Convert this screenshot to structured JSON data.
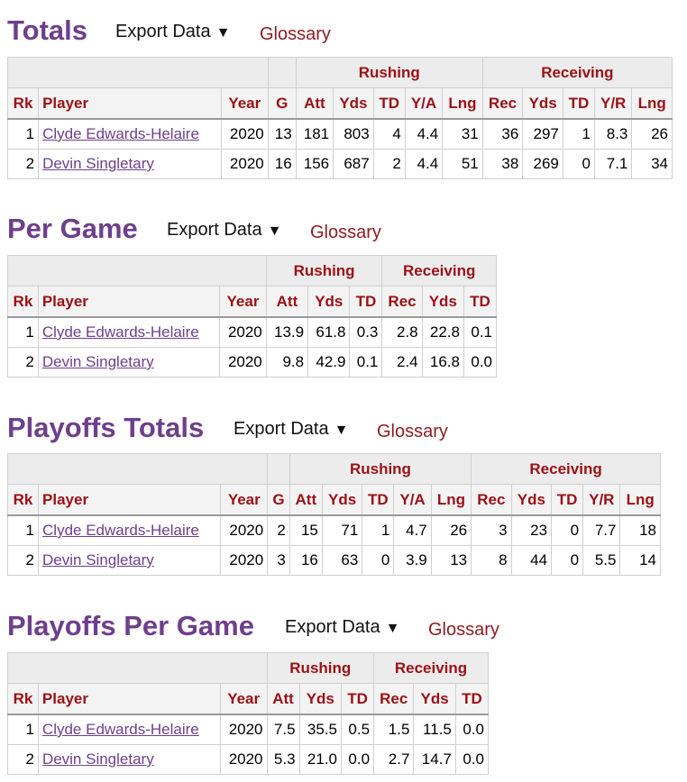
{
  "export_label": "Export Data",
  "glossary_label": "Glossary",
  "sections": [
    {
      "title": "Totals",
      "groups": [
        "Rushing",
        "Receiving"
      ],
      "columns": [
        "Rk",
        "Player",
        "Year",
        "G",
        "Att",
        "Yds",
        "TD",
        "Y/A",
        "Lng",
        "Rec",
        "Yds",
        "TD",
        "Y/R",
        "Lng"
      ],
      "rows": [
        [
          "1",
          "Clyde Edwards-Helaire",
          "2020",
          "13",
          "181",
          "803",
          "4",
          "4.4",
          "31",
          "36",
          "297",
          "1",
          "8.3",
          "26"
        ],
        [
          "2",
          "Devin Singletary",
          "2020",
          "16",
          "156",
          "687",
          "2",
          "4.4",
          "51",
          "38",
          "269",
          "0",
          "7.1",
          "34"
        ]
      ]
    },
    {
      "title": "Per Game",
      "groups": [
        "Rushing",
        "Receiving"
      ],
      "columns": [
        "Rk",
        "Player",
        "Year",
        "Att",
        "Yds",
        "TD",
        "Rec",
        "Yds",
        "TD"
      ],
      "rows": [
        [
          "1",
          "Clyde Edwards-Helaire",
          "2020",
          "13.9",
          "61.8",
          "0.3",
          "2.8",
          "22.8",
          "0.1"
        ],
        [
          "2",
          "Devin Singletary",
          "2020",
          "9.8",
          "42.9",
          "0.1",
          "2.4",
          "16.8",
          "0.0"
        ]
      ]
    },
    {
      "title": "Playoffs Totals",
      "groups": [
        "Rushing",
        "Receiving"
      ],
      "columns": [
        "Rk",
        "Player",
        "Year",
        "G",
        "Att",
        "Yds",
        "TD",
        "Y/A",
        "Lng",
        "Rec",
        "Yds",
        "TD",
        "Y/R",
        "Lng"
      ],
      "rows": [
        [
          "1",
          "Clyde Edwards-Helaire",
          "2020",
          "2",
          "15",
          "71",
          "1",
          "4.7",
          "26",
          "3",
          "23",
          "0",
          "7.7",
          "18"
        ],
        [
          "2",
          "Devin Singletary",
          "2020",
          "3",
          "16",
          "63",
          "0",
          "3.9",
          "13",
          "8",
          "44",
          "0",
          "5.5",
          "14"
        ]
      ]
    },
    {
      "title": "Playoffs Per Game",
      "groups": [
        "Rushing",
        "Receiving"
      ],
      "columns": [
        "Rk",
        "Player",
        "Year",
        "Att",
        "Yds",
        "TD",
        "Rec",
        "Yds",
        "TD"
      ],
      "rows": [
        [
          "1",
          "Clyde Edwards-Helaire",
          "2020",
          "7.5",
          "35.5",
          "0.5",
          "1.5",
          "11.5",
          "0.0"
        ],
        [
          "2",
          "Devin Singletary",
          "2020",
          "5.3",
          "21.0",
          "0.0",
          "2.7",
          "14.7",
          "0.0"
        ]
      ]
    }
  ]
}
